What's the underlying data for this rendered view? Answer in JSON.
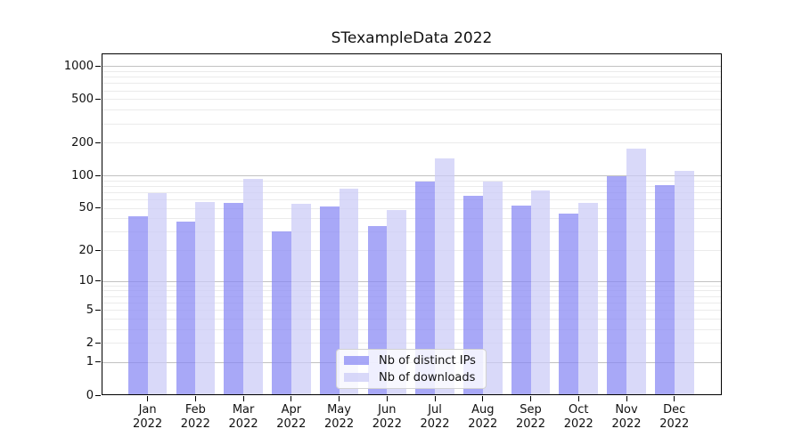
{
  "chart_data": {
    "type": "bar",
    "title": "STexampleData 2022",
    "categories": [
      "Jan",
      "Feb",
      "Mar",
      "Apr",
      "May",
      "Jun",
      "Jul",
      "Aug",
      "Sep",
      "Oct",
      "Nov",
      "Dec"
    ],
    "category_sublabel": "2022",
    "series": [
      {
        "name": "Nb of distinct IPs",
        "color": "rgba(134,134,244,0.72)",
        "values": [
          42,
          37,
          56,
          30,
          52,
          34,
          88,
          65,
          53,
          44,
          98,
          81
        ]
      },
      {
        "name": "Nb of downloads",
        "color": "rgba(203,203,246,0.72)",
        "values": [
          68,
          57,
          93,
          55,
          75,
          48,
          143,
          87,
          72,
          56,
          177,
          110
        ]
      }
    ],
    "y_axis": {
      "scale": "log1p",
      "tick_values": [
        0,
        1,
        2,
        5,
        10,
        20,
        50,
        100,
        200,
        500,
        1000
      ],
      "minor_gridline_values": [
        3,
        4,
        6,
        7,
        8,
        9,
        30,
        40,
        60,
        70,
        80,
        90,
        300,
        400,
        600,
        700,
        800,
        900
      ],
      "range_max": 1300
    },
    "grid": true,
    "legend_position": "bottom-center",
    "colors": {
      "major_gridline": "#c2c2c2",
      "minor_gridline": "#ebebeb",
      "axis": "#000000"
    }
  }
}
